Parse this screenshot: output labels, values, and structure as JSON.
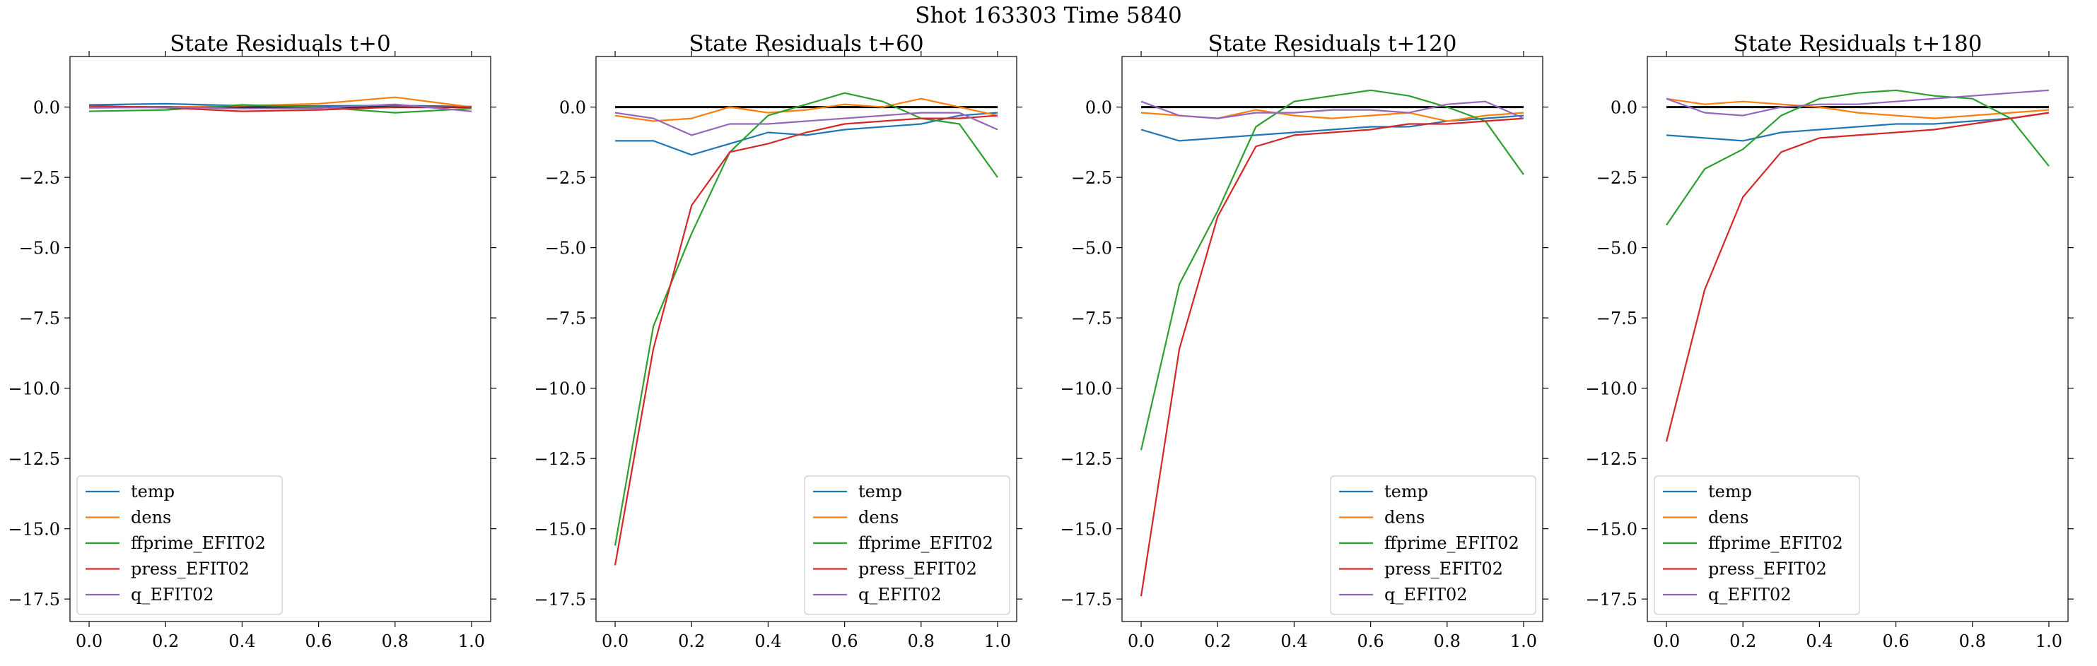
{
  "suptitle": "Shot 163303   Time 5840",
  "colors": {
    "temp": "#1f77b4",
    "dens": "#ff7f0e",
    "ffprime_EFIT02": "#2ca02c",
    "press_EFIT02": "#d62728",
    "q_EFIT02": "#9467bd",
    "zero_line": "#000000"
  },
  "chart_data": [
    {
      "type": "line",
      "title": "State Residuals t+0",
      "xlim": [
        -0.05,
        1.05
      ],
      "ylim": [
        -18.3,
        1.8
      ],
      "xticks": [
        "0.0",
        "0.2",
        "0.4",
        "0.6",
        "0.8",
        "1.0"
      ],
      "yticks": [
        "0.0",
        "−2.5",
        "−5.0",
        "−7.5",
        "−10.0",
        "−12.5",
        "−15.0",
        "−17.5"
      ],
      "legend_position": "lower-left",
      "grid": false,
      "x": [
        0.0,
        0.2,
        0.4,
        0.6,
        0.8,
        1.0
      ],
      "series": [
        {
          "name": "temp",
          "values": [
            0.08,
            0.12,
            0.05,
            0.04,
            0.06,
            0.02
          ]
        },
        {
          "name": "dens",
          "values": [
            0.02,
            0.0,
            0.05,
            0.12,
            0.35,
            0.0
          ]
        },
        {
          "name": "ffprime_EFIT02",
          "values": [
            -0.15,
            -0.1,
            0.08,
            0.0,
            -0.2,
            -0.05
          ]
        },
        {
          "name": "press_EFIT02",
          "values": [
            0.05,
            -0.02,
            -0.15,
            -0.1,
            0.0,
            0.0
          ]
        },
        {
          "name": "q_EFIT02",
          "values": [
            -0.03,
            0.0,
            -0.05,
            -0.04,
            0.1,
            -0.15
          ]
        }
      ]
    },
    {
      "type": "line",
      "title": "State Residuals t+60",
      "xlim": [
        -0.05,
        1.05
      ],
      "ylim": [
        -18.3,
        1.8
      ],
      "xticks": [
        "0.0",
        "0.2",
        "0.4",
        "0.6",
        "0.8",
        "1.0"
      ],
      "yticks": [
        "0.0",
        "−2.5",
        "−5.0",
        "−7.5",
        "−10.0",
        "−12.5",
        "−15.0",
        "−17.5"
      ],
      "legend_position": "lower-right",
      "grid": false,
      "x": [
        0.0,
        0.1,
        0.2,
        0.3,
        0.4,
        0.5,
        0.6,
        0.7,
        0.8,
        0.9,
        1.0
      ],
      "series": [
        {
          "name": "temp",
          "values": [
            -1.2,
            -1.2,
            -1.7,
            -1.3,
            -0.9,
            -1.0,
            -0.8,
            -0.7,
            -0.6,
            -0.3,
            -0.2
          ]
        },
        {
          "name": "dens",
          "values": [
            -0.3,
            -0.5,
            -0.4,
            0.0,
            -0.2,
            -0.1,
            0.1,
            0.0,
            0.3,
            0.0,
            -0.3
          ]
        },
        {
          "name": "ffprime_EFIT02",
          "values": [
            -15.6,
            -7.8,
            -4.5,
            -1.6,
            -0.3,
            0.1,
            0.5,
            0.2,
            -0.4,
            -0.6,
            -2.5
          ]
        },
        {
          "name": "press_EFIT02",
          "values": [
            -16.3,
            -8.6,
            -3.5,
            -1.6,
            -1.3,
            -0.9,
            -0.6,
            -0.5,
            -0.4,
            -0.4,
            -0.3
          ]
        },
        {
          "name": "q_EFIT02",
          "values": [
            -0.2,
            -0.4,
            -1.0,
            -0.6,
            -0.6,
            -0.5,
            -0.4,
            -0.3,
            -0.2,
            -0.2,
            -0.8
          ]
        }
      ]
    },
    {
      "type": "line",
      "title": "State Residuals t+120",
      "xlim": [
        -0.05,
        1.05
      ],
      "ylim": [
        -18.3,
        1.8
      ],
      "xticks": [
        "0.0",
        "0.2",
        "0.4",
        "0.6",
        "0.8",
        "1.0"
      ],
      "yticks": [
        "0.0",
        "−2.5",
        "−5.0",
        "−7.5",
        "−10.0",
        "−12.5",
        "−15.0",
        "−17.5"
      ],
      "legend_position": "lower-right",
      "grid": false,
      "x": [
        0.0,
        0.1,
        0.2,
        0.3,
        0.4,
        0.5,
        0.6,
        0.7,
        0.8,
        0.9,
        1.0
      ],
      "series": [
        {
          "name": "temp",
          "values": [
            -0.8,
            -1.2,
            -1.1,
            -1.0,
            -0.9,
            -0.8,
            -0.7,
            -0.7,
            -0.5,
            -0.4,
            -0.3
          ]
        },
        {
          "name": "dens",
          "values": [
            -0.2,
            -0.3,
            -0.4,
            -0.1,
            -0.3,
            -0.4,
            -0.3,
            -0.2,
            -0.5,
            -0.3,
            -0.2
          ]
        },
        {
          "name": "ffprime_EFIT02",
          "values": [
            -12.2,
            -6.3,
            -3.7,
            -0.7,
            0.2,
            0.4,
            0.6,
            0.4,
            0.0,
            -0.5,
            -2.4
          ]
        },
        {
          "name": "press_EFIT02",
          "values": [
            -17.4,
            -8.6,
            -3.9,
            -1.4,
            -1.0,
            -0.9,
            -0.8,
            -0.6,
            -0.6,
            -0.5,
            -0.4
          ]
        },
        {
          "name": "q_EFIT02",
          "values": [
            0.2,
            -0.3,
            -0.4,
            -0.2,
            -0.2,
            -0.1,
            -0.1,
            -0.2,
            0.1,
            0.2,
            -0.4
          ]
        }
      ]
    },
    {
      "type": "line",
      "title": "State Residuals t+180",
      "xlim": [
        -0.05,
        1.05
      ],
      "ylim": [
        -18.3,
        1.8
      ],
      "xticks": [
        "0.0",
        "0.2",
        "0.4",
        "0.6",
        "0.8",
        "1.0"
      ],
      "yticks": [
        "0.0",
        "−2.5",
        "−5.0",
        "−7.5",
        "−10.0",
        "−12.5",
        "−15.0",
        "−17.5"
      ],
      "legend_position": "lower-left",
      "grid": false,
      "x": [
        0.0,
        0.1,
        0.2,
        0.3,
        0.4,
        0.5,
        0.6,
        0.7,
        0.8,
        0.9,
        1.0
      ],
      "series": [
        {
          "name": "temp",
          "values": [
            -1.0,
            -1.1,
            -1.2,
            -0.9,
            -0.8,
            -0.7,
            -0.6,
            -0.6,
            -0.5,
            -0.4,
            -0.2
          ]
        },
        {
          "name": "dens",
          "values": [
            0.3,
            0.1,
            0.2,
            0.1,
            0.0,
            -0.2,
            -0.3,
            -0.4,
            -0.3,
            -0.2,
            -0.1
          ]
        },
        {
          "name": "ffprime_EFIT02",
          "values": [
            -4.2,
            -2.2,
            -1.5,
            -0.3,
            0.3,
            0.5,
            0.6,
            0.4,
            0.3,
            -0.4,
            -2.1
          ]
        },
        {
          "name": "press_EFIT02",
          "values": [
            -11.9,
            -6.5,
            -3.2,
            -1.6,
            -1.1,
            -1.0,
            -0.9,
            -0.8,
            -0.6,
            -0.4,
            -0.2
          ]
        },
        {
          "name": "q_EFIT02",
          "values": [
            0.3,
            -0.2,
            -0.3,
            0.0,
            0.1,
            0.1,
            0.2,
            0.3,
            0.4,
            0.5,
            0.6
          ]
        }
      ]
    }
  ]
}
